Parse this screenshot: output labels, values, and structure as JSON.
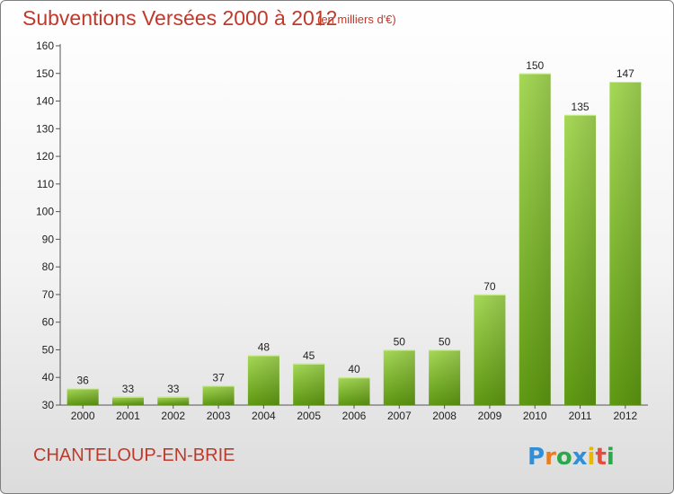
{
  "header": {
    "title": "Subventions Versées 2000 à 2012",
    "subtitle": "(en milliers d'€)"
  },
  "footer": {
    "commune": "CHANTELOUP-EN-BRIE",
    "logo_text": "Proxiti"
  },
  "chart_data": {
    "type": "bar",
    "title": "Subventions Versées 2000 à 2012",
    "subtitle": "(en milliers d'€)",
    "categories": [
      "2000",
      "2001",
      "2002",
      "2003",
      "2004",
      "2005",
      "2006",
      "2007",
      "2008",
      "2009",
      "2010",
      "2011",
      "2012"
    ],
    "values": [
      36,
      33,
      33,
      37,
      48,
      45,
      40,
      50,
      50,
      70,
      150,
      135,
      147
    ],
    "ylim": [
      30,
      160
    ],
    "yticks": [
      30,
      40,
      50,
      60,
      70,
      80,
      90,
      100,
      110,
      120,
      130,
      140,
      150,
      160
    ],
    "grid": false,
    "legend": "none",
    "bar_color_light": "#9ed14e",
    "bar_color_dark": "#5f9a12"
  }
}
